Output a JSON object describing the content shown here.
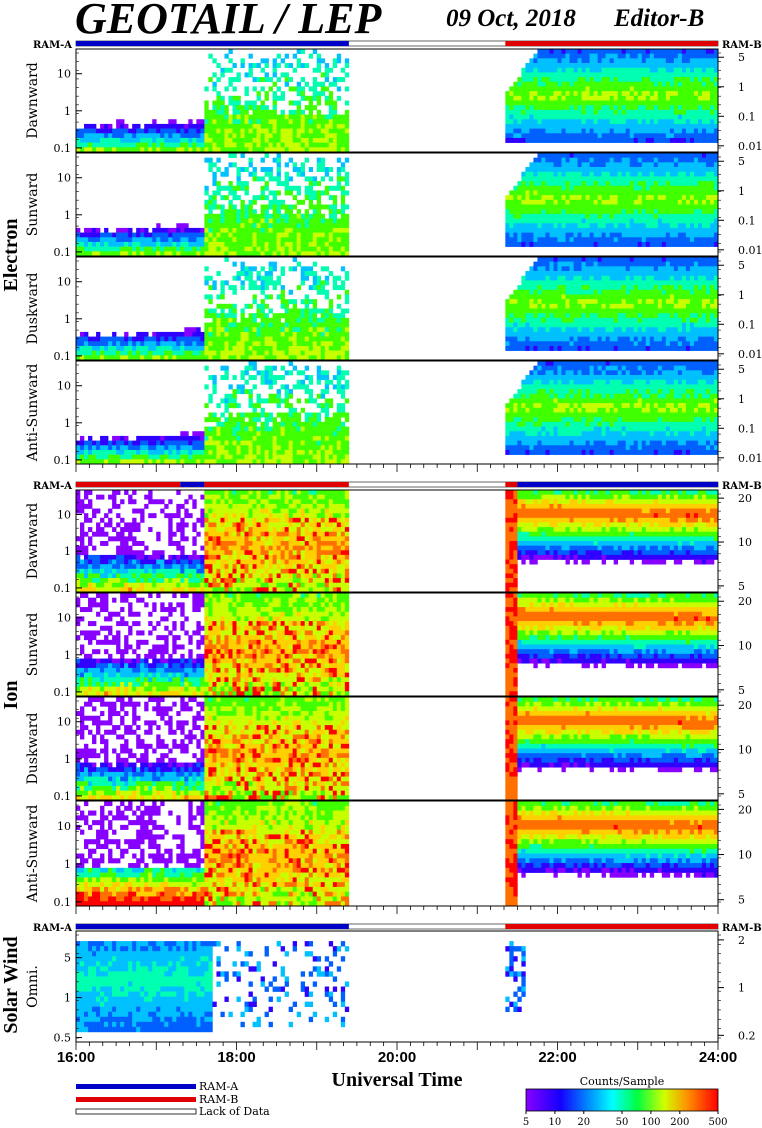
{
  "header": {
    "title": "GEOTAIL / LEP",
    "date": "09 Oct, 2018",
    "editor": "Editor-B"
  },
  "legend": {
    "ram_a": "RAM-A",
    "ram_b": "RAM-B",
    "lack": "Lack of Data",
    "colorbar_title": "Counts/Sample",
    "colorbar_ticks": [
      "5",
      "10",
      "20",
      "50",
      "100",
      "200",
      "500"
    ]
  },
  "colors": {
    "ram_a": "#0000c8",
    "ram_b": "#e00000"
  },
  "chart_data": {
    "type": "heatmap",
    "xlabel": "Universal Time",
    "x_ticks": [
      "16:00",
      "18:00",
      "20:00",
      "22:00",
      "24:00"
    ],
    "x_range_hours": [
      16,
      24
    ],
    "data_gap_hours": [
      19.4,
      21.35
    ],
    "groups": [
      {
        "name": "Electron",
        "mode_bar": {
          "left_label": "RAM-A",
          "right_label": "RAM-B",
          "segments": [
            [
              "RAM-A",
              16.0,
              19.4
            ],
            [
              "gap",
              19.4,
              21.35
            ],
            [
              "RAM-B",
              21.35,
              24.0
            ]
          ]
        },
        "panels": [
          {
            "label": "Dawnward",
            "left_ticks": [
              "10",
              "1",
              "0.1"
            ],
            "right_ticks": [
              "5",
              "1",
              "0.1",
              "0.01"
            ]
          },
          {
            "label": "Sunward",
            "left_ticks": [
              "10",
              "1",
              "0.1"
            ],
            "right_ticks": [
              "5",
              "1",
              "0.1",
              "0.01"
            ]
          },
          {
            "label": "Duskward",
            "left_ticks": [
              "10",
              "1",
              "0.1"
            ],
            "right_ticks": [
              "5",
              "1",
              "0.1",
              "0.01"
            ]
          },
          {
            "label": "Anti-Sunward",
            "left_ticks": [
              "10",
              "1",
              "0.1"
            ],
            "right_ticks": [
              "5",
              "1",
              "0.1",
              "0.01"
            ]
          }
        ]
      },
      {
        "name": "Ion",
        "mode_bar": {
          "left_label": "RAM-A",
          "right_label": "RAM-B",
          "segments": [
            [
              "RAM-B",
              16.0,
              17.3
            ],
            [
              "RAM-A",
              17.3,
              17.6
            ],
            [
              "RAM-B",
              17.6,
              19.4
            ],
            [
              "gap",
              19.4,
              21.35
            ],
            [
              "RAM-B",
              21.35,
              21.5
            ],
            [
              "RAM-A",
              21.5,
              24.0
            ]
          ]
        },
        "panels": [
          {
            "label": "Dawnward",
            "left_ticks": [
              "10",
              "1",
              "0.1"
            ],
            "right_ticks": [
              "20",
              "10",
              "5"
            ]
          },
          {
            "label": "Sunward",
            "left_ticks": [
              "10",
              "1",
              "0.1"
            ],
            "right_ticks": [
              "20",
              "10",
              "5"
            ]
          },
          {
            "label": "Duskward",
            "left_ticks": [
              "10",
              "1",
              "0.1"
            ],
            "right_ticks": [
              "20",
              "10",
              "5"
            ]
          },
          {
            "label": "Anti-Sunward",
            "left_ticks": [
              "10",
              "1",
              "0.1"
            ],
            "right_ticks": [
              "20",
              "10",
              "5"
            ]
          }
        ]
      },
      {
        "name": "Solar Wind",
        "mode_bar": {
          "left_label": "RAM-A",
          "right_label": "RAM-B",
          "segments": [
            [
              "RAM-A",
              16.0,
              19.4
            ],
            [
              "gap",
              19.4,
              21.35
            ],
            [
              "RAM-B",
              21.35,
              24.0
            ]
          ]
        },
        "panels": [
          {
            "label": "Omni.",
            "left_ticks": [
              "5",
              "1",
              "0.5"
            ],
            "right_ticks": [
              "2",
              "1",
              "0.2"
            ]
          }
        ]
      }
    ]
  }
}
